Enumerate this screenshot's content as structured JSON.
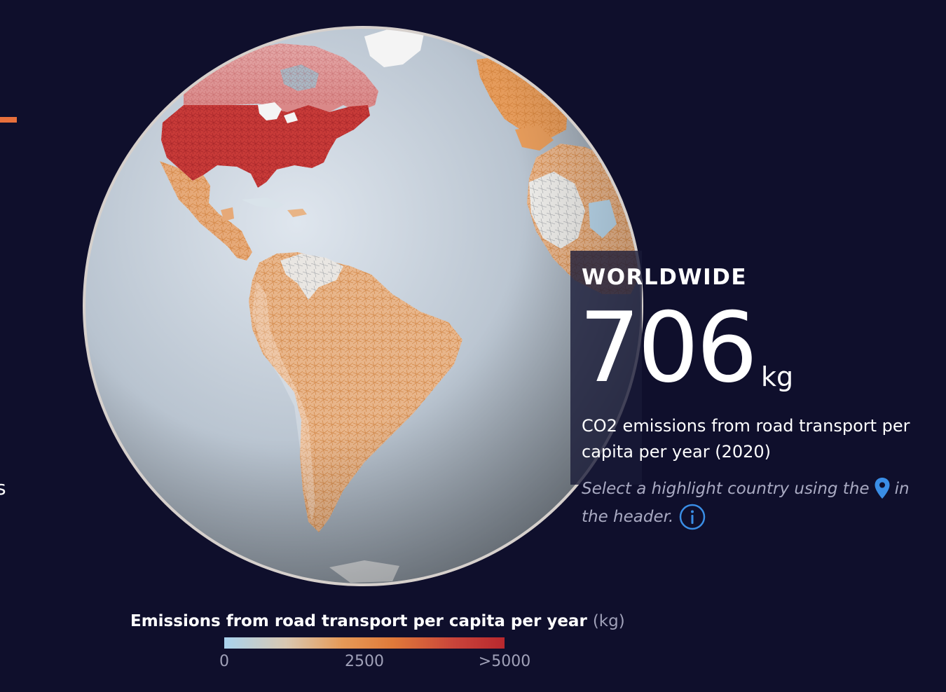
{
  "page": {
    "clipped_left_text": "s"
  },
  "panel": {
    "region": "WORLDWIDE",
    "value": "706",
    "unit": "kg",
    "description": "CO2 emissions from road transport per capita per year (2020)",
    "hint_before": "Select a highlight country using the",
    "hint_after": "in the header.",
    "pin_icon": "location-pin-icon",
    "info_icon": "info-circle-icon"
  },
  "legend": {
    "title": "Emissions from road transport per capita per year",
    "unit": "(kg)",
    "ticks": [
      "0",
      "2500",
      ">5000"
    ],
    "colors": [
      "#a9d3ee",
      "#d9c8b2",
      "#e59a58",
      "#e07a3a",
      "#c9443a",
      "#b8282e"
    ]
  },
  "colors": {
    "background": "#0f0f2c",
    "accent": "#e8703c",
    "icon_blue": "#3a8ee6",
    "high_emission": "#b8282e",
    "mid_emission": "#e07a3a"
  }
}
